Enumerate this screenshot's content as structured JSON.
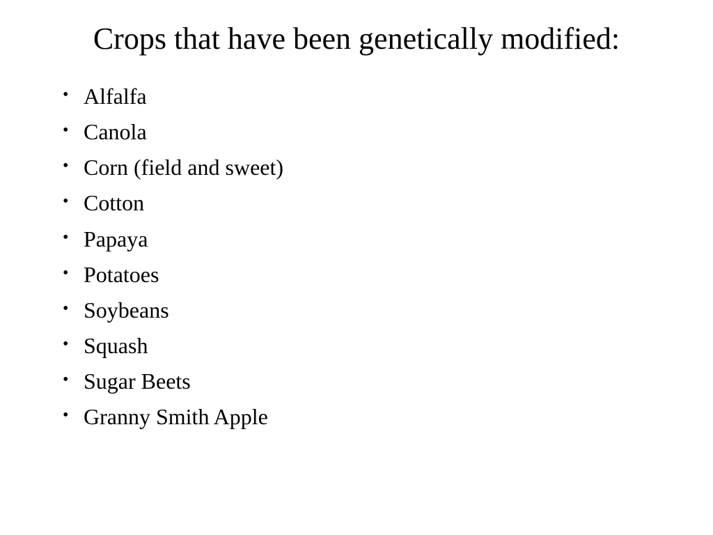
{
  "slide": {
    "title": "Crops that have been genetically modified:",
    "items": [
      "Alfalfa",
      "Canola",
      "Corn (field and sweet)",
      "Cotton",
      "Papaya",
      "Potatoes",
      "Soybeans",
      "Squash",
      "Sugar Beets",
      "Granny Smith Apple"
    ],
    "styling": {
      "background_color": "#ffffff",
      "text_color": "#000000",
      "title_fontsize": 44,
      "item_fontsize": 32,
      "font_family": "Times New Roman",
      "bullet_style": "disc"
    }
  }
}
